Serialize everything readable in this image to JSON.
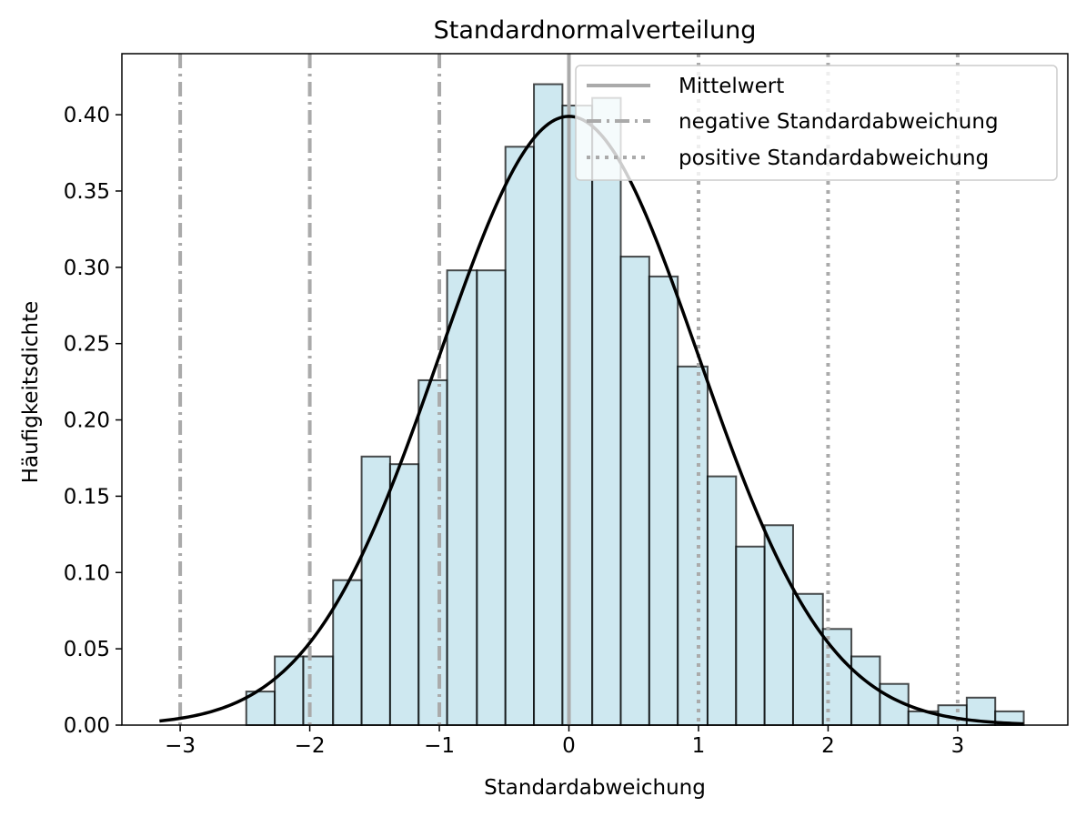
{
  "chart_data": {
    "type": "bar",
    "title": "Standardnormalverteilung",
    "xlabel": "Standardabweichung",
    "ylabel": "Häufigkeitsdichte",
    "xlim": [
      -3.45,
      3.85
    ],
    "ylim": [
      0,
      0.44
    ],
    "x_ticks": [
      -3,
      -2,
      -1,
      0,
      1,
      2,
      3
    ],
    "x_tick_labels": [
      "−3",
      "−2",
      "−1",
      "0",
      "1",
      "2",
      "3"
    ],
    "y_ticks": [
      0.0,
      0.05,
      0.1,
      0.15,
      0.2,
      0.25,
      0.3,
      0.35,
      0.4
    ],
    "y_tick_labels": [
      "0.00",
      "0.05",
      "0.10",
      "0.15",
      "0.20",
      "0.25",
      "0.30",
      "0.35",
      "0.40"
    ],
    "grid": false,
    "histogram": {
      "bin_edges": [
        -3.16,
        -2.94,
        -2.72,
        -2.49,
        -2.27,
        -2.05,
        -1.82,
        -1.6,
        -1.38,
        -1.16,
        -0.94,
        -0.71,
        -0.49,
        -0.27,
        -0.05,
        0.18,
        0.4,
        0.62,
        0.84,
        1.07,
        1.29,
        1.51,
        1.73,
        1.96,
        2.18,
        2.4,
        2.62,
        2.85,
        3.07,
        3.29,
        3.51
      ],
      "densities": [
        0.0,
        0.0,
        0.0,
        0.022,
        0.045,
        0.045,
        0.095,
        0.176,
        0.171,
        0.226,
        0.298,
        0.298,
        0.379,
        0.42,
        0.406,
        0.411,
        0.307,
        0.294,
        0.235,
        0.163,
        0.117,
        0.131,
        0.086,
        0.063,
        0.045,
        0.027,
        0.009,
        0.013,
        0.018,
        0.009
      ],
      "fill_color": "#add8e6",
      "edge_color": "#000000"
    },
    "curve": {
      "type": "normal-pdf",
      "mean": 0,
      "std": 1,
      "x_range": [
        -3.16,
        3.51
      ],
      "color": "#000000"
    },
    "vertical_lines": [
      {
        "x": 0,
        "style": "solid",
        "color": "#aaaaaa"
      },
      {
        "x": -1,
        "style": "dashdot",
        "color": "#aaaaaa"
      },
      {
        "x": -2,
        "style": "dashdot",
        "color": "#aaaaaa"
      },
      {
        "x": -3,
        "style": "dashdot",
        "color": "#aaaaaa"
      },
      {
        "x": 1,
        "style": "dotted",
        "color": "#aaaaaa"
      },
      {
        "x": 2,
        "style": "dotted",
        "color": "#aaaaaa"
      },
      {
        "x": 3,
        "style": "dotted",
        "color": "#aaaaaa"
      }
    ],
    "legend": {
      "placement": "upper right",
      "entries": [
        {
          "label": "Mittelwert",
          "style": "solid"
        },
        {
          "label": "negative Standardabweichung",
          "style": "dashdot"
        },
        {
          "label": "positive Standardabweichung",
          "style": "dotted"
        }
      ]
    }
  }
}
